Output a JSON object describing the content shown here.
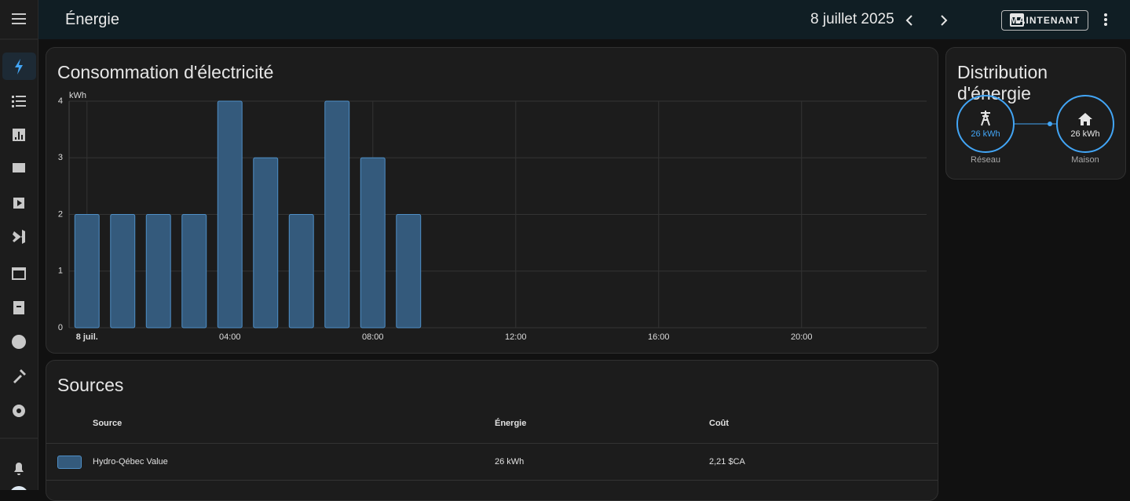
{
  "header": {
    "title": "Énergie",
    "date": "8 juillet 2025",
    "now_button": "MAINTENANT"
  },
  "chart_data": {
    "type": "bar",
    "title": "Consommation d'électricité",
    "y_unit": "kWh",
    "categories": [
      "8 juil.",
      null,
      null,
      null,
      "04:00",
      null,
      null,
      null,
      "08:00",
      null,
      null,
      null,
      "12:00",
      null,
      null,
      null,
      "16:00",
      null,
      null,
      null,
      "20:00",
      null,
      null,
      null
    ],
    "values": [
      2,
      2,
      2,
      2,
      4,
      3,
      2,
      4,
      3,
      2,
      null,
      null,
      null,
      null,
      null,
      null,
      null,
      null,
      null,
      null,
      null,
      null,
      null,
      null
    ],
    "color": "#345a7c",
    "border_color": "#4f8fc6",
    "ylim": [
      0,
      4
    ],
    "yticks": [
      0,
      1,
      2,
      3,
      4
    ],
    "grid": true
  },
  "distribution": {
    "title": "Distribution d'énergie",
    "grid": {
      "value": "26 kWh",
      "label": "Réseau"
    },
    "home": {
      "value": "26 kWh",
      "label": "Maison"
    }
  },
  "sources": {
    "title": "Sources",
    "columns": [
      "Source",
      "Énergie",
      "Coût"
    ],
    "rows": [
      [
        "Hydro-Qébec Value",
        "26 kWh",
        "2,21 $CA"
      ]
    ]
  }
}
